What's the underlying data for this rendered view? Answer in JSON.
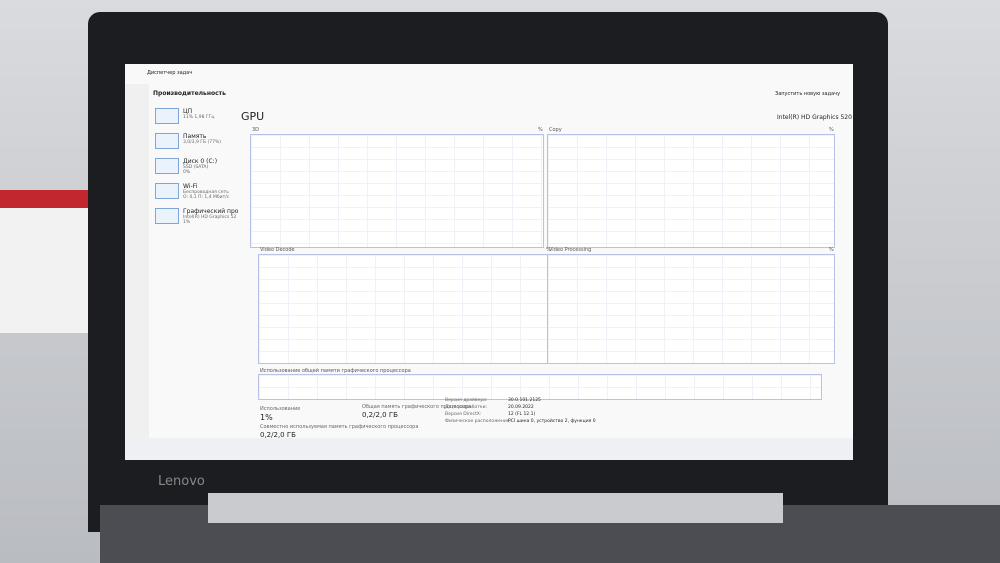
{
  "window": {
    "title": "Диспетчер задач",
    "section": "Производительность",
    "new_task": "Запустить новую задачу"
  },
  "sidebar": [
    {
      "name": "ЦП",
      "detail": "11% 1,98 ГГц"
    },
    {
      "name": "Память",
      "detail": "3,0/3,9 ГБ (77%)"
    },
    {
      "name": "Диск 0 (C:)",
      "detail": "SSD (SATA)",
      "extra": "0%"
    },
    {
      "name": "Wi-Fi",
      "detail": "Беспроводная сеть",
      "extra": "О: 0,1 П: 1,4 Мбит/с"
    },
    {
      "name": "Графический про",
      "detail": "Intel(R) HD Graphics 52",
      "extra": "1%"
    }
  ],
  "gpu": {
    "title": "GPU",
    "model": "Intel(R) HD Graphics 520",
    "graphs": [
      {
        "label": "3D",
        "max": "%"
      },
      {
        "label": "Copy",
        "max": "%"
      },
      {
        "label": "Video Decode",
        "max": "%"
      },
      {
        "label": "Video Processing",
        "max": "%"
      }
    ],
    "memory_graph": "Использование общей памяти графического процессора",
    "usage_label": "Использование",
    "usage": "1%",
    "shared_label": "Общая память графического процессора",
    "shared": "0,2/2,0 ГБ",
    "shared2_label": "Совместно используемая память графического процессора",
    "shared2": "0,2/2,0 ГБ",
    "details": [
      [
        "Версия драйвера:",
        "30.0.101.2125"
      ],
      [
        "Дата разработки:",
        "20.09.2022"
      ],
      [
        "Версия DirectX:",
        "12 (FL 12.1)"
      ],
      [
        "Физическое расположение:",
        "PCI шина 0, устройство 2, функция 0"
      ]
    ]
  },
  "brand": "Lenovo"
}
